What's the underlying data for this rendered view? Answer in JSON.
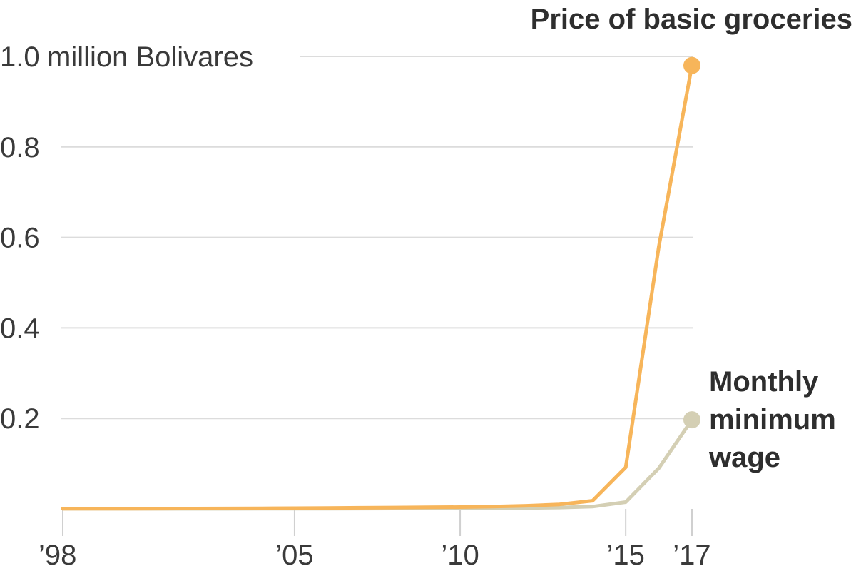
{
  "chart_data": {
    "type": "line",
    "title": "",
    "xlabel": "",
    "ylabel": "",
    "y_unit_label": "million Bolivares",
    "xlim": [
      1998,
      2017
    ],
    "ylim": [
      0,
      1.0
    ],
    "grid": true,
    "y_ticks": [
      {
        "value": 1.0,
        "label": "1.0"
      },
      {
        "value": 0.8,
        "label": "0.8"
      },
      {
        "value": 0.6,
        "label": "0.6"
      },
      {
        "value": 0.4,
        "label": "0.4"
      },
      {
        "value": 0.2,
        "label": "0.2"
      }
    ],
    "x_ticks": [
      {
        "value": 1998,
        "label": "’98"
      },
      {
        "value": 2005,
        "label": "’05"
      },
      {
        "value": 2010,
        "label": "’10"
      },
      {
        "value": 2015,
        "label": "’15"
      },
      {
        "value": 2017,
        "label": "’17"
      }
    ],
    "series": [
      {
        "name": "Monthly minimum wage",
        "label_lines": [
          "Monthly",
          "minimum",
          "wage"
        ],
        "color": "#d4cfb4",
        "points": [
          [
            1998,
            0.0001
          ],
          [
            1999,
            0.0001
          ],
          [
            2000,
            0.0001
          ],
          [
            2001,
            0.0002
          ],
          [
            2002,
            0.0002
          ],
          [
            2003,
            0.0002
          ],
          [
            2004,
            0.0003
          ],
          [
            2005,
            0.0004
          ],
          [
            2006,
            0.0005
          ],
          [
            2007,
            0.0006
          ],
          [
            2008,
            0.0008
          ],
          [
            2009,
            0.001
          ],
          [
            2010,
            0.0012
          ],
          [
            2011,
            0.0015
          ],
          [
            2012,
            0.002
          ],
          [
            2013,
            0.003
          ],
          [
            2014,
            0.005
          ],
          [
            2015,
            0.015
          ],
          [
            2016,
            0.09
          ],
          [
            2017,
            0.197
          ]
        ]
      },
      {
        "name": "Price of basic groceries",
        "label_lines": [
          "Price of basic groceries"
        ],
        "color": "#f7b55a",
        "points": [
          [
            1998,
            0.0003
          ],
          [
            1999,
            0.0004
          ],
          [
            2000,
            0.0005
          ],
          [
            2001,
            0.0006
          ],
          [
            2002,
            0.0008
          ],
          [
            2003,
            0.001
          ],
          [
            2004,
            0.0012
          ],
          [
            2005,
            0.0015
          ],
          [
            2006,
            0.002
          ],
          [
            2007,
            0.0025
          ],
          [
            2008,
            0.003
          ],
          [
            2009,
            0.0035
          ],
          [
            2010,
            0.004
          ],
          [
            2011,
            0.005
          ],
          [
            2012,
            0.007
          ],
          [
            2013,
            0.01
          ],
          [
            2014,
            0.018
          ],
          [
            2015,
            0.092
          ],
          [
            2016,
            0.58
          ],
          [
            2017,
            0.98
          ]
        ]
      }
    ]
  }
}
